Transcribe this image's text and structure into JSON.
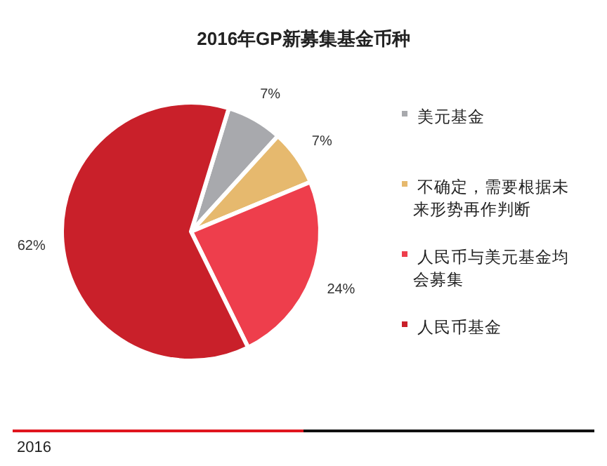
{
  "chart_data": {
    "type": "pie",
    "title": "2016年GP新募集基金币种",
    "categories": [
      "美元基金",
      "不确定，需要根据未来形势再作判断",
      "人民币与美元基金均会募集",
      "人民币基金"
    ],
    "values": [
      7,
      7,
      24,
      62
    ],
    "colors": [
      "#a8a9ad",
      "#e6b96e",
      "#ee3e4c",
      "#c9202a"
    ],
    "value_labels": [
      "7%",
      "7%",
      "24%",
      "62%"
    ],
    "legend": "right",
    "annotations": [
      "2016"
    ]
  }
}
